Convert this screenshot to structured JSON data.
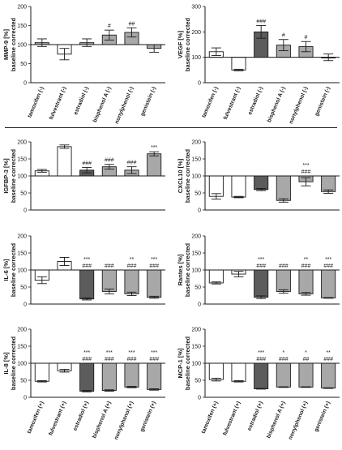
{
  "colors": {
    "white_bar": "#ffffff",
    "light_grey_bar": "#a8a8a8",
    "dark_grey_bar": "#5c5c5c",
    "black": "#1a1a1a"
  },
  "chart_data": [
    {
      "panel": "MMP-9",
      "type": "bar",
      "ylabel": "MMP-9 [%]",
      "ylabel2": "baseline corrected",
      "ylim": [
        0,
        200
      ],
      "yticks": [
        0,
        50,
        100,
        150,
        200
      ],
      "baseline": 100,
      "categories": [
        "tamoxifen (-)",
        "fulvestrant (-)",
        "estradiol (-)",
        "bisphenol A (-)",
        "nonylphenol (-)",
        "genistein (-)"
      ],
      "values": [
        105,
        75,
        105,
        125,
        132,
        90
      ],
      "errors": [
        10,
        15,
        10,
        13,
        12,
        10
      ],
      "fills": [
        "light",
        "white",
        "light",
        "light",
        "light",
        "light"
      ],
      "annotations": [
        [],
        [],
        [],
        [
          "#"
        ],
        [
          "##"
        ],
        []
      ],
      "show_xlabels": true
    },
    {
      "panel": "VEGF",
      "type": "bar",
      "ylabel": "VEGF [%]",
      "ylabel2": "baseline corrected",
      "ylim": [
        0,
        300
      ],
      "yticks": [
        0,
        100,
        200,
        300
      ],
      "baseline": 100,
      "categories": [
        "tamoxifen (-)",
        "fulvestrant (-)",
        "estradiol (-)",
        "bisphenol A (-)",
        "nonylphenol (-)",
        "genistein (-)"
      ],
      "values": [
        122,
        50,
        200,
        148,
        142,
        100
      ],
      "errors": [
        15,
        3,
        25,
        22,
        20,
        13
      ],
      "fills": [
        "white",
        "white",
        "dark",
        "light",
        "light",
        "light"
      ],
      "annotations": [
        [],
        [],
        [
          "###"
        ],
        [
          "#"
        ],
        [
          "#"
        ],
        []
      ],
      "show_xlabels": true
    },
    {
      "panel": "IGFBP-3",
      "type": "bar",
      "ylabel": "IGFBP-3 [%]",
      "ylabel2": "baseline corrected",
      "ylim": [
        0,
        200
      ],
      "yticks": [
        0,
        50,
        100,
        150,
        200
      ],
      "baseline": 100,
      "categories": [
        "tamoxifen (-)",
        "fulvestrant (-)",
        "estradiol (-)",
        "bisphenol A (-)",
        "nonylphenol (-)",
        "genistein (-)"
      ],
      "values": [
        115,
        186,
        117,
        127,
        117,
        165
      ],
      "errors": [
        4,
        5,
        8,
        7,
        10,
        6
      ],
      "fills": [
        "white",
        "white",
        "dark",
        "light",
        "light",
        "light"
      ],
      "annotations": [
        [],
        [],
        [
          "###"
        ],
        [
          "###"
        ],
        [
          "###"
        ],
        [
          "***"
        ]
      ],
      "show_xlabels": false
    },
    {
      "panel": "CXCL10",
      "type": "bar",
      "ylabel": "CXCL10 [%]",
      "ylabel2": "baseline corrected",
      "ylim": [
        0,
        200
      ],
      "yticks": [
        0,
        50,
        100,
        150,
        200
      ],
      "baseline": 100,
      "categories": [
        "tamoxifen (-)",
        "fulvestrant (-)",
        "estradiol (-)",
        "bisphenol A (-)",
        "nonylphenol (-)",
        "genistein (-)"
      ],
      "values": [
        40,
        38,
        60,
        28,
        83,
        54
      ],
      "errors": [
        8,
        2,
        3,
        5,
        12,
        5
      ],
      "fills": [
        "white",
        "white",
        "dark",
        "light",
        "light",
        "light"
      ],
      "annotations": [
        [],
        [],
        [],
        [],
        [
          "***",
          "###"
        ],
        []
      ],
      "show_xlabels": false
    },
    {
      "panel": "IL-6",
      "type": "bar",
      "ylabel": "IL-6 [%]",
      "ylabel2": "baseline corrected",
      "ylim": [
        0,
        200
      ],
      "yticks": [
        0,
        50,
        100,
        150,
        200
      ],
      "baseline": 100,
      "categories": [
        "tamoxifen (-)",
        "fulvestrant (-)",
        "estradiol (-)",
        "bisphenol A (-)",
        "nonylphenol (-)",
        "genistein (-)"
      ],
      "values": [
        70,
        125,
        15,
        37,
        30,
        20
      ],
      "errors": [
        10,
        12,
        3,
        7,
        5,
        3
      ],
      "fills": [
        "white",
        "white",
        "dark",
        "light",
        "light",
        "light"
      ],
      "annotations": [
        [],
        [],
        [
          "***",
          "###"
        ],
        [
          "###"
        ],
        [
          "**",
          "###"
        ],
        [
          "***",
          "###"
        ]
      ],
      "show_xlabels": false
    },
    {
      "panel": "Rantes",
      "type": "bar",
      "ylabel": "Rantes [%]",
      "ylabel2": "baseline corrected",
      "ylim": [
        0,
        200
      ],
      "yticks": [
        0,
        50,
        100,
        150,
        200
      ],
      "baseline": 100,
      "categories": [
        "tamoxifen (-)",
        "fulvestrant (-)",
        "estradiol (-)",
        "bisphenol A (-)",
        "nonylphenol (-)",
        "genistein (-)"
      ],
      "values": [
        62,
        88,
        20,
        37,
        30,
        18
      ],
      "errors": [
        3,
        8,
        4,
        5,
        4,
        1
      ],
      "fills": [
        "white",
        "white",
        "dark",
        "light",
        "light",
        "light"
      ],
      "annotations": [
        [],
        [],
        [
          "***",
          "###"
        ],
        [
          "###"
        ],
        [
          "**",
          "###"
        ],
        [
          "***",
          "###"
        ]
      ],
      "show_xlabels": false
    },
    {
      "panel": "IL-8",
      "type": "bar",
      "ylabel": "IL-8 [%]",
      "ylabel2": "baseline corrected",
      "ylim": [
        0,
        200
      ],
      "yticks": [
        0,
        50,
        100,
        150,
        200
      ],
      "baseline": 100,
      "categories": [
        "tamoxifen (+)",
        "fulvestrant (+)",
        "estradiol (+)",
        "bisphenol A (+)",
        "nonylphenol (+)",
        "genistein (+)"
      ],
      "values": [
        47,
        78,
        18,
        20,
        30,
        23
      ],
      "errors": [
        2,
        4,
        2,
        2,
        2,
        2
      ],
      "fills": [
        "white",
        "white",
        "dark",
        "light",
        "light",
        "light"
      ],
      "annotations": [
        [],
        [],
        [
          "***",
          "###"
        ],
        [
          "***",
          "###"
        ],
        [
          "***",
          "###"
        ],
        [
          "***",
          "###"
        ]
      ],
      "show_xlabels": true
    },
    {
      "panel": "MCP-1",
      "type": "bar",
      "ylabel": "MCP-1 [%]",
      "ylabel2": "baseline corrected",
      "ylim": [
        0,
        200
      ],
      "yticks": [
        0,
        50,
        100,
        150,
        200
      ],
      "baseline": 100,
      "categories": [
        "tamoxifen (+)",
        "fulvestrant (+)",
        "estradiol (+)",
        "bisphenol A (+)",
        "nonylphenol (+)",
        "genistein (+)"
      ],
      "values": [
        52,
        47,
        25,
        30,
        30,
        27
      ],
      "errors": [
        4,
        2,
        1,
        1,
        1,
        1
      ],
      "fills": [
        "white",
        "white",
        "dark",
        "light",
        "light",
        "light"
      ],
      "annotations": [
        [],
        [],
        [
          "***",
          "###"
        ],
        [
          "*",
          "###"
        ],
        [
          "*",
          "##"
        ],
        [
          "**",
          "###"
        ]
      ],
      "show_xlabels": true
    }
  ]
}
